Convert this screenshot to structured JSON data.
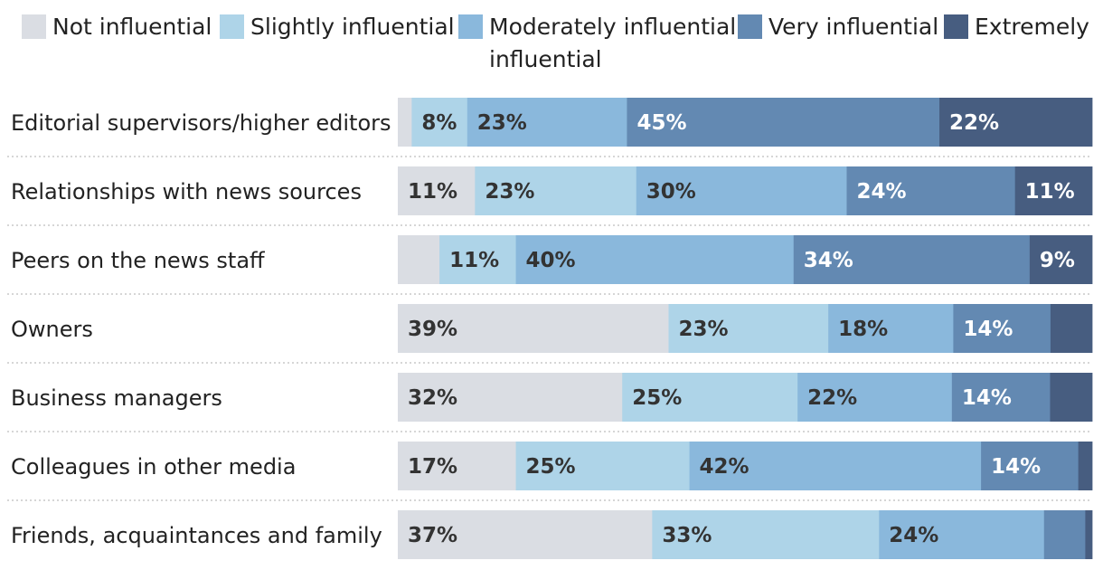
{
  "chart_data": {
    "type": "bar",
    "orientation": "horizontal",
    "stacked": true,
    "legend_position": "top",
    "series": [
      {
        "name": "Not influential",
        "color": "#dadde3",
        "label_color": "#333333",
        "values": [
          2,
          11,
          6,
          39,
          32,
          17,
          37
        ]
      },
      {
        "name": "Slightly influential",
        "color": "#aed4e8",
        "label_color": "#333333",
        "values": [
          8,
          23,
          11,
          23,
          25,
          25,
          33
        ]
      },
      {
        "name": "Moderately influential",
        "name_line2": "influential",
        "color": "#8ab8dc",
        "label_color": "#333333",
        "values": [
          23,
          30,
          40,
          18,
          22,
          42,
          24
        ]
      },
      {
        "name": "Very influential",
        "color": "#6389b2",
        "label_color": "#ffffff",
        "values": [
          45,
          24,
          34,
          14,
          14,
          14,
          6
        ]
      },
      {
        "name": "Extremely",
        "color": "#475d80",
        "label_color": "#ffffff",
        "values": [
          22,
          11,
          9,
          6,
          6,
          2,
          1
        ]
      }
    ],
    "categories": [
      "Editorial supervisors/higher editors",
      "Relationships with news sources",
      "Peers on the news staff",
      "Owners",
      "Business managers",
      "Colleagues in other media",
      "Friends, acquaintances and family"
    ],
    "labels": [
      [
        "",
        "8%",
        "23%",
        "45%",
        "22%"
      ],
      [
        "11%",
        "23%",
        "30%",
        "24%",
        "11%"
      ],
      [
        "",
        "11%",
        "40%",
        "34%",
        "9%"
      ],
      [
        "39%",
        "23%",
        "18%",
        "14%",
        ""
      ],
      [
        "32%",
        "25%",
        "22%",
        "14%",
        ""
      ],
      [
        "17%",
        "25%",
        "42%",
        "14%",
        ""
      ],
      [
        "37%",
        "33%",
        "24%",
        "",
        ""
      ]
    ]
  }
}
